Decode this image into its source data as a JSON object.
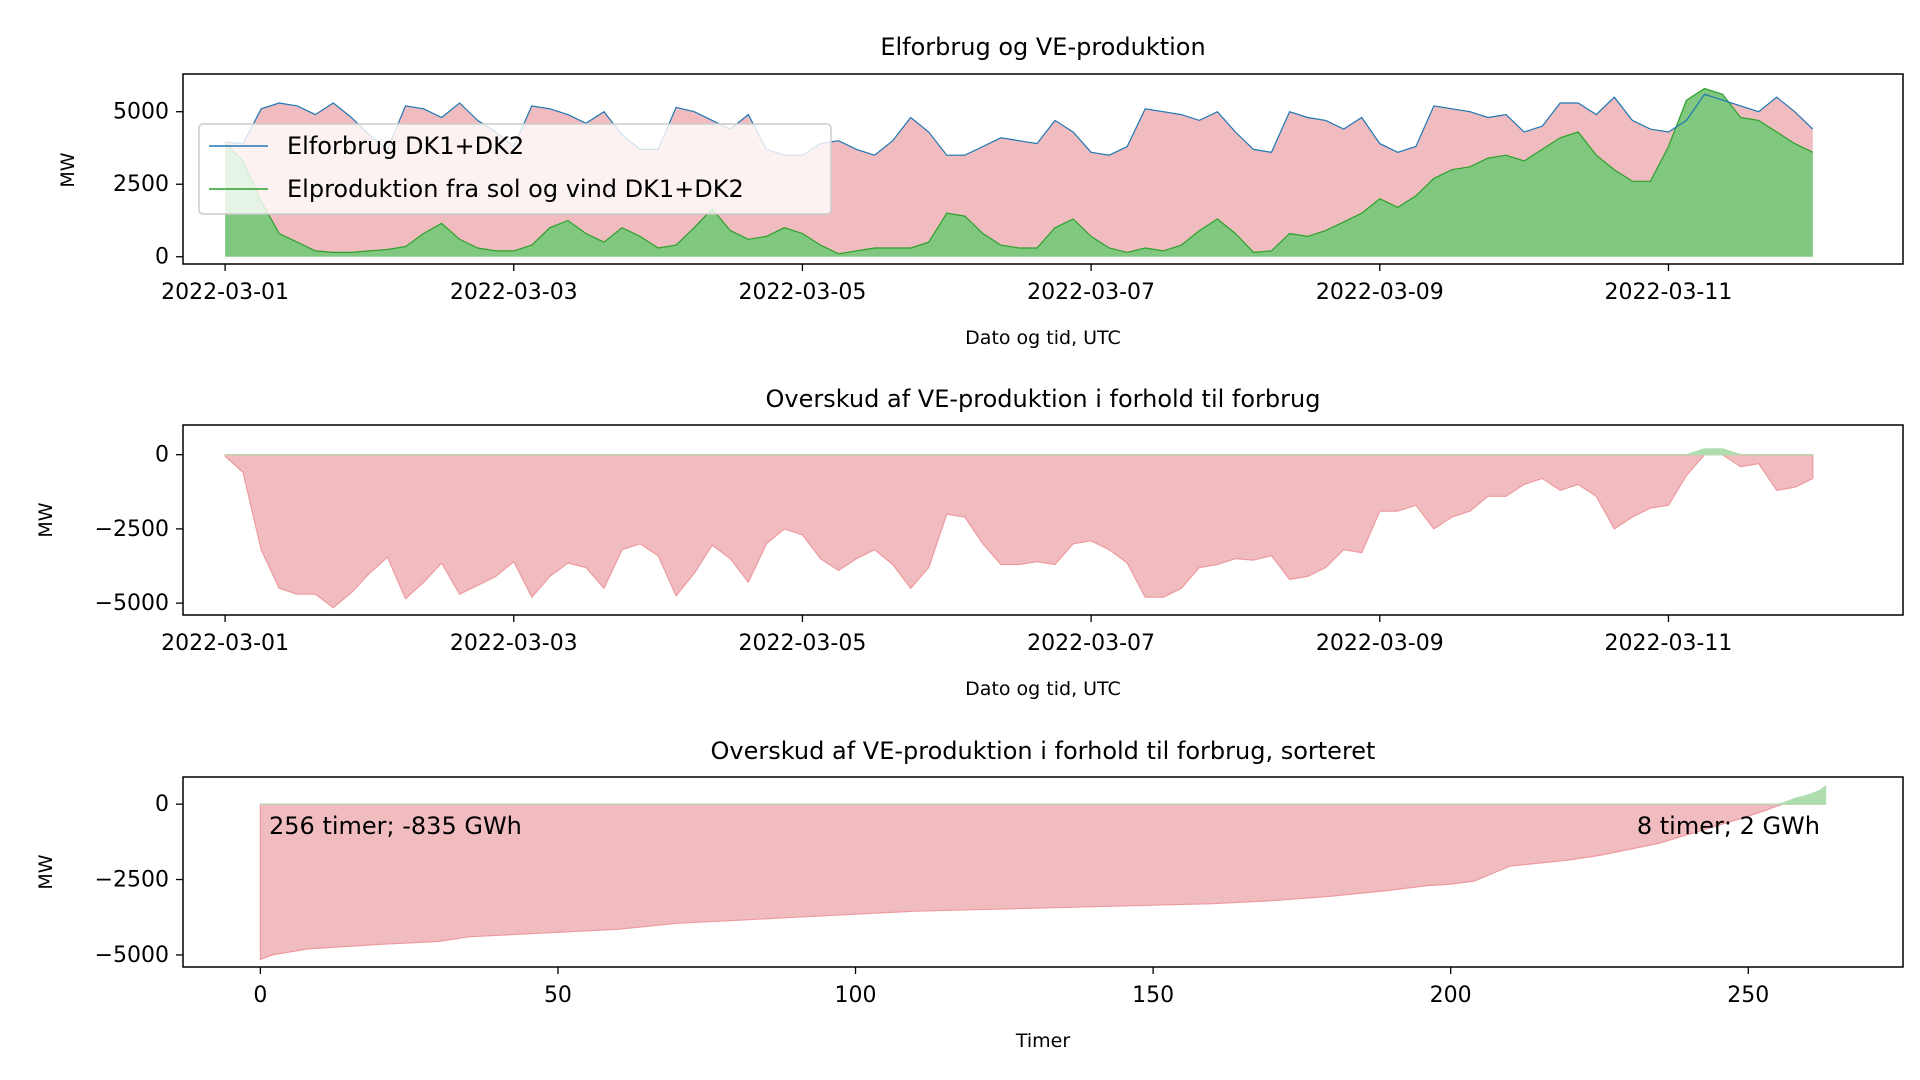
{
  "colors": {
    "consumption": "#1f77b4",
    "production": "#2ca02c",
    "deficit_fill": "#f0bcbf",
    "deficit_edge": "#ee9a9e",
    "surplus_fill": "#80c87f",
    "surplus_light": "#b0ddb0",
    "deficit_text": "#d62728",
    "surplus_text": "#2ca02c"
  },
  "chart_data": [
    {
      "type": "area",
      "title": "Elforbrug og VE-produktion",
      "xlabel": "Dato og tid, UTC",
      "ylabel": "MW",
      "ylim": [
        -250,
        6300
      ],
      "yticks": [
        0,
        2500,
        5000
      ],
      "ytick_labels": [
        "0",
        "2500",
        "5000"
      ],
      "xlim": [
        "2022-02-28T17:00",
        "2022-03-12T15:00"
      ],
      "xticks": [
        "2022-03-01",
        "2022-03-03",
        "2022-03-05",
        "2022-03-07",
        "2022-03-09",
        "2022-03-11"
      ],
      "legend_position": "upper-left",
      "series": [
        {
          "name": "Elforbrug DK1+DK2",
          "role": "consumption",
          "x": [
            "2022-03-01T00:00",
            "2022-03-01T03:00",
            "2022-03-01T06:00",
            "2022-03-01T09:00",
            "2022-03-01T12:00",
            "2022-03-01T15:00",
            "2022-03-01T18:00",
            "2022-03-01T21:00",
            "2022-03-02T00:00",
            "2022-03-02T03:00",
            "2022-03-02T06:00",
            "2022-03-02T09:00",
            "2022-03-02T12:00",
            "2022-03-02T15:00",
            "2022-03-02T18:00",
            "2022-03-02T21:00",
            "2022-03-03T00:00",
            "2022-03-03T03:00",
            "2022-03-03T06:00",
            "2022-03-03T09:00",
            "2022-03-03T12:00",
            "2022-03-03T15:00",
            "2022-03-03T18:00",
            "2022-03-03T21:00",
            "2022-03-04T00:00",
            "2022-03-04T03:00",
            "2022-03-04T06:00",
            "2022-03-04T09:00",
            "2022-03-04T12:00",
            "2022-03-04T15:00",
            "2022-03-04T18:00",
            "2022-03-04T21:00",
            "2022-03-05T00:00",
            "2022-03-05T03:00",
            "2022-03-05T06:00",
            "2022-03-05T09:00",
            "2022-03-05T12:00",
            "2022-03-05T15:00",
            "2022-03-05T18:00",
            "2022-03-05T21:00",
            "2022-03-06T00:00",
            "2022-03-06T03:00",
            "2022-03-06T06:00",
            "2022-03-06T09:00",
            "2022-03-06T12:00",
            "2022-03-06T15:00",
            "2022-03-06T18:00",
            "2022-03-06T21:00",
            "2022-03-07T00:00",
            "2022-03-07T03:00",
            "2022-03-07T06:00",
            "2022-03-07T09:00",
            "2022-03-07T12:00",
            "2022-03-07T15:00",
            "2022-03-07T18:00",
            "2022-03-07T21:00",
            "2022-03-08T00:00",
            "2022-03-08T03:00",
            "2022-03-08T06:00",
            "2022-03-08T09:00",
            "2022-03-08T12:00",
            "2022-03-08T15:00",
            "2022-03-08T18:00",
            "2022-03-08T21:00",
            "2022-03-09T00:00",
            "2022-03-09T03:00",
            "2022-03-09T06:00",
            "2022-03-09T09:00",
            "2022-03-09T12:00",
            "2022-03-09T15:00",
            "2022-03-09T18:00",
            "2022-03-09T21:00",
            "2022-03-10T00:00",
            "2022-03-10T03:00",
            "2022-03-10T06:00",
            "2022-03-10T09:00",
            "2022-03-10T12:00",
            "2022-03-10T15:00",
            "2022-03-10T18:00",
            "2022-03-10T21:00",
            "2022-03-11T00:00",
            "2022-03-11T03:00",
            "2022-03-11T06:00",
            "2022-03-11T09:00",
            "2022-03-11T12:00",
            "2022-03-11T15:00",
            "2022-03-11T18:00",
            "2022-03-11T21:00",
            "2022-03-12T00:00"
          ],
          "values": [
            3950,
            3900,
            5100,
            5300,
            5200,
            4900,
            5300,
            4800,
            4200,
            3700,
            5200,
            5100,
            4800,
            5300,
            4700,
            4300,
            3800,
            5200,
            5100,
            4900,
            4600,
            5000,
            4200,
            3700,
            3700,
            5150,
            5000,
            4700,
            4400,
            4900,
            3700,
            3500,
            3500,
            3900,
            4000,
            3700,
            3500,
            4000,
            4800,
            4300,
            3500,
            3500,
            3800,
            4100,
            4000,
            3900,
            4700,
            4300,
            3600,
            3500,
            3800,
            5100,
            5000,
            4900,
            4700,
            5000,
            4300,
            3700,
            3600,
            5000,
            4800,
            4700,
            4400,
            4800,
            3900,
            3600,
            3800,
            5200,
            5100,
            5000,
            4800,
            4900,
            4300,
            4500,
            5300,
            5300,
            4900,
            5500,
            4700,
            4400,
            4300,
            4700,
            5600,
            5400,
            5200,
            5000,
            5500,
            5000,
            4400
          ]
        },
        {
          "name": "Elproduktion fra sol og vind DK1+DK2",
          "role": "production",
          "values": [
            3900,
            3300,
            1900,
            800,
            500,
            200,
            150,
            150,
            200,
            250,
            350,
            800,
            1150,
            600,
            300,
            200,
            200,
            400,
            1000,
            1250,
            800,
            500,
            1000,
            700,
            300,
            400,
            1000,
            1650,
            900,
            600,
            700,
            1000,
            800,
            400,
            100,
            200,
            300,
            300,
            300,
            500,
            1500,
            1400,
            800,
            400,
            300,
            300,
            1000,
            1300,
            700,
            300,
            150,
            300,
            200,
            400,
            900,
            1300,
            800,
            150,
            200,
            800,
            700,
            900,
            1200,
            1500,
            2000,
            1700,
            2100,
            2700,
            3000,
            3100,
            3400,
            3500,
            3300,
            3700,
            4100,
            4300,
            3500,
            3000,
            2600,
            2600,
            3800,
            5400,
            5800,
            5600,
            4800,
            4700,
            4300,
            3900,
            3600
          ]
        }
      ]
    },
    {
      "type": "area",
      "title": "Overskud af VE-produktion i forhold til forbrug",
      "xlabel": "Dato og tid, UTC",
      "ylabel": "MW",
      "ylim": [
        -5400,
        1000
      ],
      "yticks": [
        -5000,
        -2500,
        0
      ],
      "ytick_labels": [
        "−5000",
        "−2500",
        "0"
      ],
      "xlim": [
        "2022-02-28T17:00",
        "2022-03-12T15:00"
      ],
      "xticks": [
        "2022-03-01",
        "2022-03-03",
        "2022-03-05",
        "2022-03-07",
        "2022-03-09",
        "2022-03-11"
      ],
      "series": [
        {
          "role": "surplus",
          "values": [
            -50,
            -600,
            -3200,
            -4500,
            -4700,
            -4700,
            -5150,
            -4650,
            -4000,
            -3450,
            -4850,
            -4300,
            -3650,
            -4700,
            -4400,
            -4100,
            -3600,
            -4800,
            -4100,
            -3650,
            -3800,
            -4500,
            -3200,
            -3000,
            -3400,
            -4750,
            -4000,
            -3050,
            -3500,
            -4300,
            -3000,
            -2500,
            -2700,
            -3500,
            -3900,
            -3500,
            -3200,
            -3700,
            -4500,
            -3800,
            -2000,
            -2100,
            -3000,
            -3700,
            -3700,
            -3600,
            -3700,
            -3000,
            -2900,
            -3200,
            -3650,
            -4800,
            -4800,
            -4500,
            -3800,
            -3700,
            -3500,
            -3550,
            -3400,
            -4200,
            -4100,
            -3800,
            -3200,
            -3300,
            -1900,
            -1900,
            -1700,
            -2500,
            -2100,
            -1900,
            -1400,
            -1400,
            -1000,
            -800,
            -1200,
            -1000,
            -1400,
            -2500,
            -2100,
            -1800,
            -1700,
            -700,
            200,
            200,
            -400,
            -300,
            -1200,
            -1100,
            -800
          ]
        }
      ]
    },
    {
      "type": "area",
      "title": "Overskud af VE-produktion i forhold til forbrug, sorteret",
      "xlabel": "Timer",
      "ylabel": "MW",
      "xlim": [
        -13,
        276
      ],
      "ylim": [
        -5400,
        900
      ],
      "xticks": [
        0,
        50,
        100,
        150,
        200,
        250
      ],
      "xtick_labels": [
        "0",
        "50",
        "100",
        "150",
        "200",
        "250"
      ],
      "yticks": [
        -5000,
        -2500,
        0
      ],
      "ytick_labels": [
        "−5000",
        "−2500",
        "0"
      ],
      "x": [
        0,
        2,
        5,
        8,
        20,
        30,
        35,
        45,
        60,
        70,
        80,
        90,
        100,
        110,
        120,
        130,
        140,
        150,
        160,
        170,
        180,
        190,
        196,
        200,
        204,
        207,
        210,
        215,
        220,
        225,
        230,
        235,
        240,
        245,
        250,
        253,
        255,
        256,
        258,
        260,
        262,
        263
      ],
      "values": [
        -5150,
        -5000,
        -4900,
        -4800,
        -4650,
        -4550,
        -4400,
        -4300,
        -4150,
        -3950,
        -3850,
        -3750,
        -3650,
        -3550,
        -3500,
        -3450,
        -3400,
        -3350,
        -3300,
        -3200,
        -3050,
        -2850,
        -2700,
        -2650,
        -2550,
        -2300,
        -2050,
        -1950,
        -1850,
        -1700,
        -1500,
        -1300,
        -1000,
        -700,
        -400,
        -200,
        -50,
        50,
        200,
        300,
        450,
        600
      ],
      "annotations": [
        {
          "text": "256 timer; -835 GWh",
          "color_role": "deficit_text",
          "position": "top-left"
        },
        {
          "text": "8 timer; 2 GWh",
          "color_role": "surplus_text",
          "position": "top-right"
        }
      ]
    }
  ]
}
